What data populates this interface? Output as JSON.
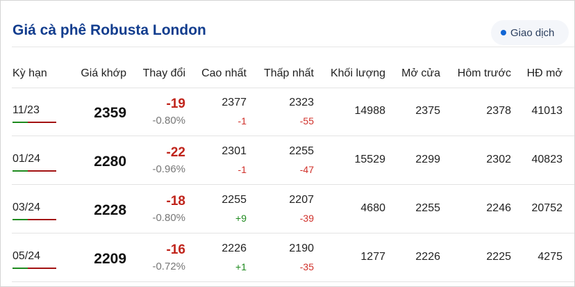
{
  "title": "Giá cà phê Robusta London",
  "button": {
    "label": "Giao dịch"
  },
  "colors": {
    "title": "#123d8e",
    "negative": "#d0302a",
    "positive": "#1e8a1e",
    "accent_dot": "#1266d4"
  },
  "columns": [
    "Kỳ hạn",
    "Giá khớp",
    "Thay đổi",
    "Cao nhất",
    "Thấp nhất",
    "Khối lượng",
    "Mở cửa",
    "Hôm trước",
    "HĐ mở"
  ],
  "rows": [
    {
      "term": "11/23",
      "price": "2359",
      "change": "-19",
      "change_pct": "-0.80%",
      "high": "2377",
      "high_diff": "-1",
      "low": "2323",
      "low_diff": "-55",
      "volume": "14988",
      "open": "2375",
      "prev": "2378",
      "oi": "41013"
    },
    {
      "term": "01/24",
      "price": "2280",
      "change": "-22",
      "change_pct": "-0.96%",
      "high": "2301",
      "high_diff": "-1",
      "low": "2255",
      "low_diff": "-47",
      "volume": "15529",
      "open": "2299",
      "prev": "2302",
      "oi": "40823"
    },
    {
      "term": "03/24",
      "price": "2228",
      "change": "-18",
      "change_pct": "-0.80%",
      "high": "2255",
      "high_diff": "+9",
      "low": "2207",
      "low_diff": "-39",
      "volume": "4680",
      "open": "2255",
      "prev": "2246",
      "oi": "20752"
    },
    {
      "term": "05/24",
      "price": "2209",
      "change": "-16",
      "change_pct": "-0.72%",
      "high": "2226",
      "high_diff": "+1",
      "low": "2190",
      "low_diff": "-35",
      "volume": "1277",
      "open": "2226",
      "prev": "2225",
      "oi": "4275"
    }
  ]
}
